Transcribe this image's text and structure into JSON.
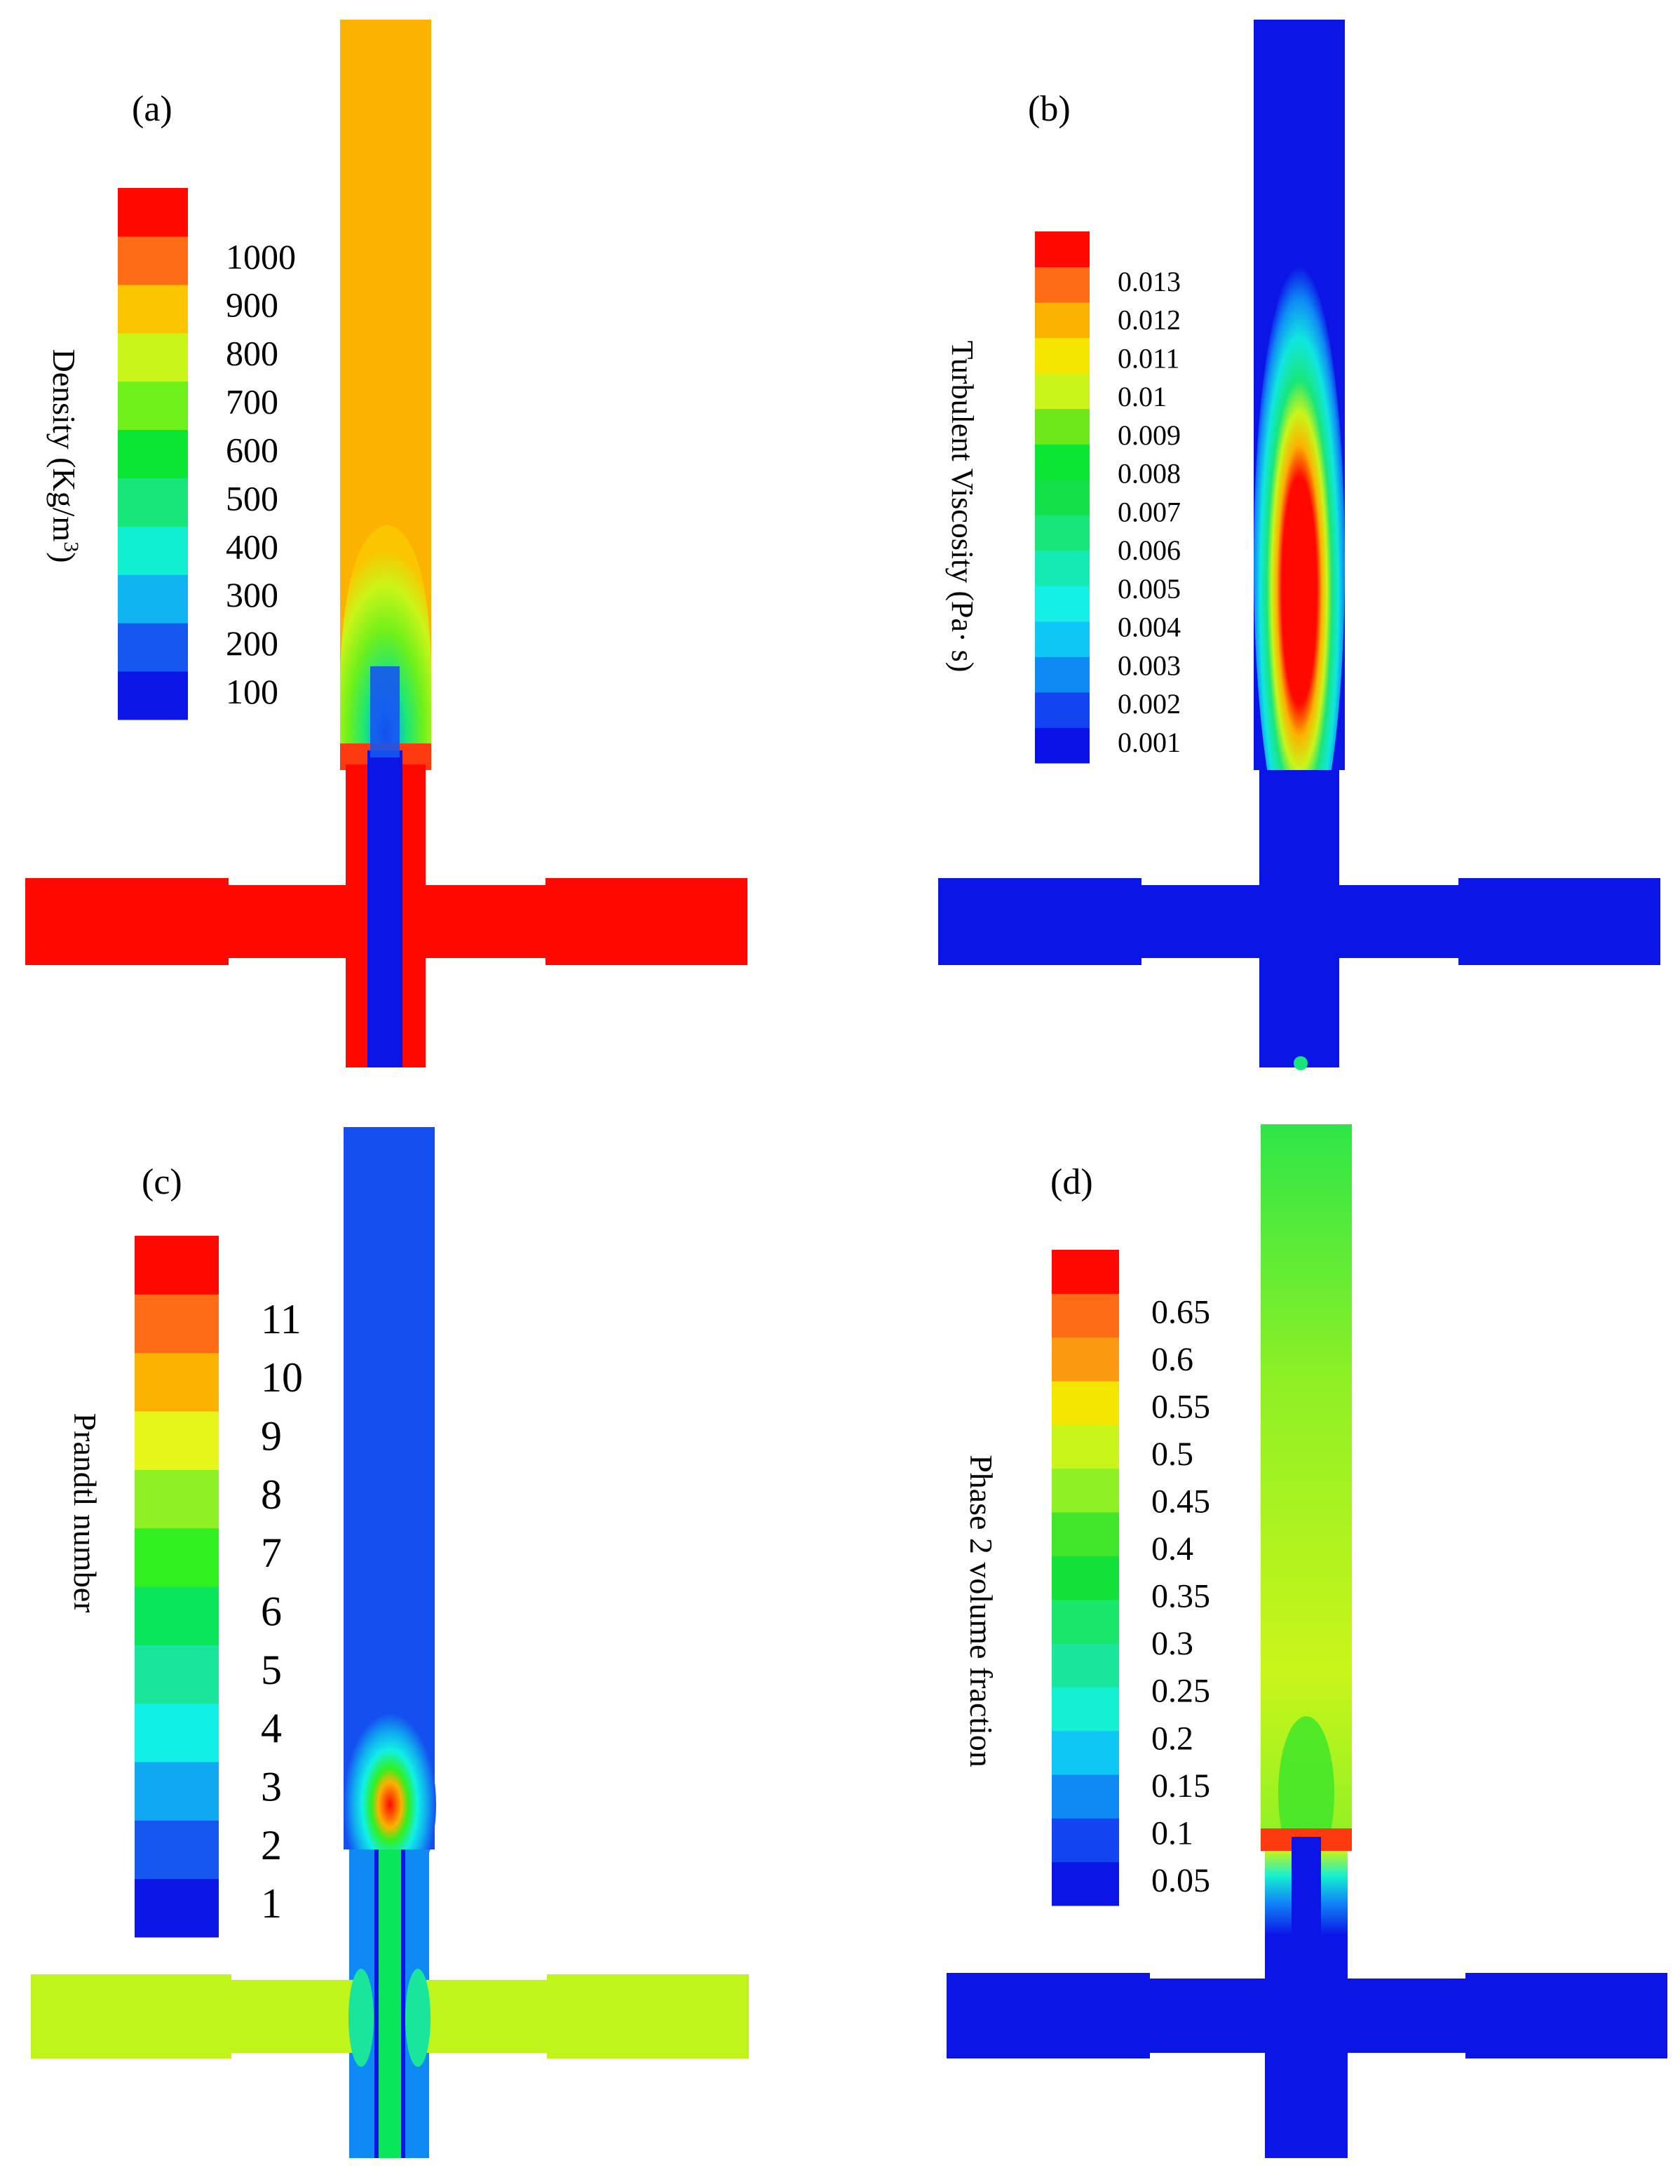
{
  "panels": [
    {
      "id": "a",
      "label": "(a)",
      "axis_title_main": "Density",
      "axis_title_unit": "(Kg/m",
      "axis_title_sup": "3",
      "axis_title_close": ")",
      "colors": [
        "#0b16e6",
        "#1657f0",
        "#0fb4f0",
        "#10f0d0",
        "#19e67a",
        "#0ae632",
        "#6ef01b",
        "#c9f519",
        "#fbc500",
        "#fe6d16",
        "#fe0800"
      ],
      "tick_labels": [
        "100",
        "200",
        "300",
        "400",
        "500",
        "600",
        "700",
        "800",
        "900",
        "1000"
      ],
      "field": {
        "top": "#fbb200",
        "base": "#fe0800"
      }
    },
    {
      "id": "b",
      "label": "(b)",
      "axis_title_main": "Turbulent Viscosity  (Pa· s)",
      "colors": [
        "#0b12e8",
        "#1244f2",
        "#0f8af5",
        "#0fc7f5",
        "#14f0e6",
        "#14ebb4",
        "#19e67a",
        "#14e04a",
        "#0ae632",
        "#6ee81b",
        "#c9f51a",
        "#f5e600",
        "#fbb200",
        "#fe6d16",
        "#fe0800"
      ],
      "tick_labels": [
        "0.001",
        "0.002",
        "0.003",
        "0.004",
        "0.005",
        "0.006",
        "0.007",
        "0.008",
        "0.009",
        "0.01",
        "0.011",
        "0.012",
        "0.013"
      ],
      "field": {
        "top": "#0b16e6",
        "base": "#0b16e6"
      }
    },
    {
      "id": "c",
      "label": "(c)",
      "axis_title_main": "Prandtl number",
      "colors": [
        "#0b16e6",
        "#1657f0",
        "#10a8f0",
        "#10f0e6",
        "#19e69a",
        "#0ae65a",
        "#30f020",
        "#8ef025",
        "#e6f51a",
        "#fbb200",
        "#fe6d16",
        "#fe0800"
      ],
      "tick_labels": [
        "1",
        "2",
        "3",
        "4",
        "5",
        "6",
        "7",
        "8",
        "9",
        "10",
        "11"
      ],
      "field": {
        "top": "#1450f0",
        "base": "#bff51a"
      }
    },
    {
      "id": "d",
      "label": "(d)",
      "axis_title_main": "Phase 2 volume fraction",
      "colors": [
        "#0b16e6",
        "#1244f2",
        "#0f8af5",
        "#0fc7f5",
        "#14f0d2",
        "#19e69a",
        "#19e66a",
        "#14e03a",
        "#40e62a",
        "#8ef025",
        "#c9f51a",
        "#f5e600",
        "#fb9a10",
        "#fe6d16",
        "#fe0800"
      ],
      "tick_labels": [
        "0.05",
        "0.1",
        "0.15",
        "0.2",
        "0.25",
        "0.3",
        "0.35",
        "0.4",
        "0.45",
        "0.5",
        "0.55",
        "0.6",
        "0.65"
      ],
      "field": {
        "top": "#2ee648",
        "base": "#0b16e6"
      }
    }
  ]
}
